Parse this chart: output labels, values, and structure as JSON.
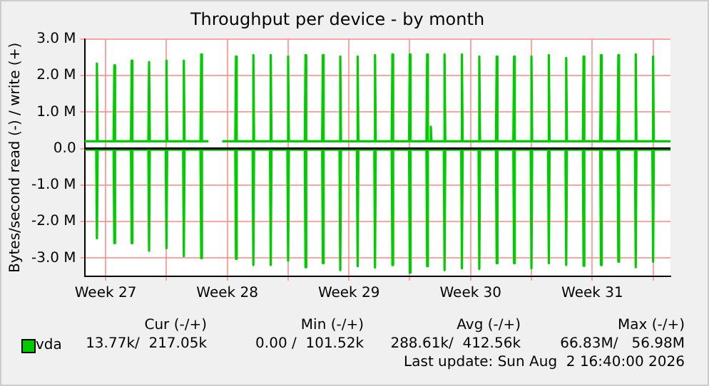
{
  "chart_data": {
    "type": "line",
    "title": "Throughput per device - by month",
    "ylabel": "Bytes/second read (-) / write (+)",
    "x": [
      "2026-07-01T07:00",
      "2026-07-01T23:00",
      "2026-07-02T00:00",
      "2026-07-02T01:00",
      "2026-07-02T23:00",
      "2026-07-03T00:00",
      "2026-07-03T01:00",
      "2026-07-03T23:00",
      "2026-07-04T00:00",
      "2026-07-04T01:00",
      "2026-07-04T23:00",
      "2026-07-05T00:00",
      "2026-07-05T01:00",
      "2026-07-05T23:00",
      "2026-07-06T00:00",
      "2026-07-06T01:00",
      "2026-07-06T23:00",
      "2026-07-07T00:00",
      "2026-07-07T01:00",
      "2026-07-07T23:00",
      "2026-07-08T00:00",
      "2026-07-08T01:00",
      "2026-07-08T10:00",
      "2026-07-08T17:00",
      "2026-07-09T05:00",
      "2026-07-09T23:00",
      "2026-07-10T00:00",
      "2026-07-10T01:00",
      "2026-07-10T23:00",
      "2026-07-11T00:00",
      "2026-07-11T01:00",
      "2026-07-11T23:00",
      "2026-07-12T00:00",
      "2026-07-12T01:00",
      "2026-07-12T23:00",
      "2026-07-13T00:00",
      "2026-07-13T01:00",
      "2026-07-13T23:00",
      "2026-07-14T00:00",
      "2026-07-14T01:00",
      "2026-07-14T23:00",
      "2026-07-15T00:00",
      "2026-07-15T01:00",
      "2026-07-15T23:00",
      "2026-07-16T00:00",
      "2026-07-16T01:00",
      "2026-07-16T23:00",
      "2026-07-17T00:00",
      "2026-07-17T01:00",
      "2026-07-17T23:00",
      "2026-07-18T00:00",
      "2026-07-18T01:00",
      "2026-07-18T23:00",
      "2026-07-19T00:00",
      "2026-07-19T01:00",
      "2026-07-19T23:00",
      "2026-07-20T00:00",
      "2026-07-20T01:00",
      "2026-07-20T23:00",
      "2026-07-21T00:00",
      "2026-07-21T01:00",
      "2026-07-21T04:00",
      "2026-07-21T05:00",
      "2026-07-21T06:00",
      "2026-07-21T23:00",
      "2026-07-22T00:00",
      "2026-07-22T01:00",
      "2026-07-22T23:00",
      "2026-07-23T00:00",
      "2026-07-23T01:00",
      "2026-07-23T23:00",
      "2026-07-24T00:00",
      "2026-07-24T01:00",
      "2026-07-24T23:00",
      "2026-07-25T00:00",
      "2026-07-25T01:00",
      "2026-07-25T23:00",
      "2026-07-26T00:00",
      "2026-07-26T01:00",
      "2026-07-26T23:00",
      "2026-07-27T00:00",
      "2026-07-27T01:00",
      "2026-07-27T23:00",
      "2026-07-28T00:00",
      "2026-07-28T01:00",
      "2026-07-28T23:00",
      "2026-07-29T00:00",
      "2026-07-29T01:00",
      "2026-07-29T23:00",
      "2026-07-30T00:00",
      "2026-07-30T01:00",
      "2026-07-30T23:00",
      "2026-07-31T00:00",
      "2026-07-31T01:00",
      "2026-07-31T23:00",
      "2026-08-01T00:00",
      "2026-08-01T01:00",
      "2026-08-01T23:00",
      "2026-08-02T00:00",
      "2026-08-02T01:00",
      "2026-08-02T23:00",
      "2026-08-03T00:00",
      "2026-08-03T01:00",
      "2026-08-04T00:00"
    ],
    "series": [
      {
        "name": "vda",
        "color": "#00cc00",
        "values": [
          0.2,
          0.2,
          2.33,
          0.2,
          0.2,
          2.28,
          0.2,
          0.2,
          2.41,
          0.2,
          0.2,
          2.37,
          0.2,
          0.2,
          2.41,
          0.2,
          0.2,
          2.41,
          0.2,
          0.2,
          2.58,
          0.2,
          0.2,
          null,
          0.2,
          0.2,
          2.52,
          0.2,
          0.2,
          2.56,
          0.2,
          0.2,
          2.56,
          0.2,
          0.2,
          2.52,
          0.2,
          0.2,
          2.56,
          0.2,
          0.2,
          2.56,
          0.2,
          0.2,
          2.52,
          0.2,
          0.2,
          2.52,
          0.2,
          0.2,
          2.56,
          0.2,
          0.2,
          2.58,
          0.2,
          0.2,
          2.58,
          0.2,
          0.2,
          2.58,
          0.2,
          0.2,
          0.6,
          0.2,
          0.2,
          2.58,
          0.2,
          0.2,
          2.58,
          0.2,
          0.2,
          2.52,
          0.2,
          0.2,
          2.52,
          0.2,
          0.2,
          2.52,
          0.2,
          0.2,
          2.52,
          0.2,
          0.2,
          2.56,
          0.2,
          0.2,
          2.48,
          0.2,
          0.2,
          2.52,
          0.2,
          0.2,
          2.56,
          0.2,
          0.2,
          2.56,
          0.2,
          0.2,
          2.58,
          0.2,
          0.2,
          2.52,
          0.2,
          0.2
        ]
      },
      {
        "color": "#00cc00",
        "values": [
          -0.03,
          -0.03,
          -2.46,
          -0.03,
          -0.03,
          -2.59,
          -0.03,
          -0.03,
          -2.59,
          -0.03,
          -0.03,
          -2.8,
          -0.03,
          -0.03,
          -2.73,
          -0.03,
          -0.03,
          -2.95,
          -0.03,
          -0.03,
          -3.0,
          -0.03,
          -0.03,
          -0.03,
          -0.03,
          -0.03,
          -3.02,
          -0.03,
          -0.03,
          -3.19,
          -0.03,
          -0.03,
          -3.19,
          -0.03,
          -0.03,
          -3.07,
          -0.03,
          -0.03,
          -3.25,
          -0.03,
          -0.03,
          -3.14,
          -0.03,
          -0.03,
          -3.33,
          -0.03,
          -0.03,
          -3.22,
          -0.03,
          -0.03,
          -3.26,
          -0.03,
          -0.03,
          -3.19,
          -0.03,
          -0.03,
          -3.4,
          -0.03,
          -0.03,
          -3.22,
          -0.03,
          -0.03,
          -0.03,
          -0.03,
          -0.03,
          -3.33,
          -0.03,
          -0.03,
          -3.28,
          -0.03,
          -0.03,
          -3.3,
          -0.03,
          -0.03,
          -3.14,
          -0.03,
          -0.03,
          -3.14,
          -0.03,
          -0.03,
          -3.28,
          -0.03,
          -0.03,
          -3.14,
          -0.03,
          -0.03,
          -3.19,
          -0.03,
          -0.03,
          -3.21,
          -0.03,
          -0.03,
          -3.19,
          -0.03,
          -0.03,
          -3.1,
          -0.03,
          -0.03,
          -3.25,
          -0.03,
          -0.03,
          -3.1,
          -0.03,
          -0.03
        ]
      }
    ],
    "xlim": [
      "2026-07-01T07:00",
      "2026-08-04T00:00"
    ],
    "xticks": [
      {
        "value": "2026-07-02T12:00",
        "label": "Week 27"
      },
      {
        "value": "2026-07-06T00:00",
        "label": null
      },
      {
        "value": "2026-07-09T12:00",
        "label": "Week 28"
      },
      {
        "value": "2026-07-13T00:00",
        "label": null
      },
      {
        "value": "2026-07-16T12:00",
        "label": "Week 29"
      },
      {
        "value": "2026-07-20T00:00",
        "label": null
      },
      {
        "value": "2026-07-23T12:00",
        "label": "Week 30"
      },
      {
        "value": "2026-07-27T00:00",
        "label": null
      },
      {
        "value": "2026-07-30T12:00",
        "label": "Week 31"
      },
      {
        "value": "2026-08-03T00:00",
        "label": null
      }
    ],
    "ylim": [
      -3.5,
      3.0
    ],
    "yticks": [
      {
        "value": -3,
        "label": "-3.0 M"
      },
      {
        "value": -2,
        "label": "-2.0 M"
      },
      {
        "value": -1,
        "label": "-1.0 M"
      },
      {
        "value": 0,
        "label": "0.0"
      },
      {
        "value": 1,
        "label": "1.0 M"
      },
      {
        "value": 2,
        "label": "2.0 M"
      },
      {
        "value": 3,
        "label": "3.0 M"
      }
    ],
    "ref_lines": [
      {
        "axis": "y",
        "value": 0,
        "color": "#000000"
      }
    ],
    "grid": true,
    "legend": "bottom left",
    "marker": "none",
    "line_style": "solid",
    "annotations": [
      "Cur (-/+)",
      "Min (-/+)",
      "Avg (-/+)",
      "Max (-/+)",
      "13.77k/  217.05k",
      "0.00 /  101.52k",
      "288.61k/  412.56k",
      "66.83M/   56.98M",
      "Last update: Sun Aug  2 16:40:00 2026"
    ]
  }
}
